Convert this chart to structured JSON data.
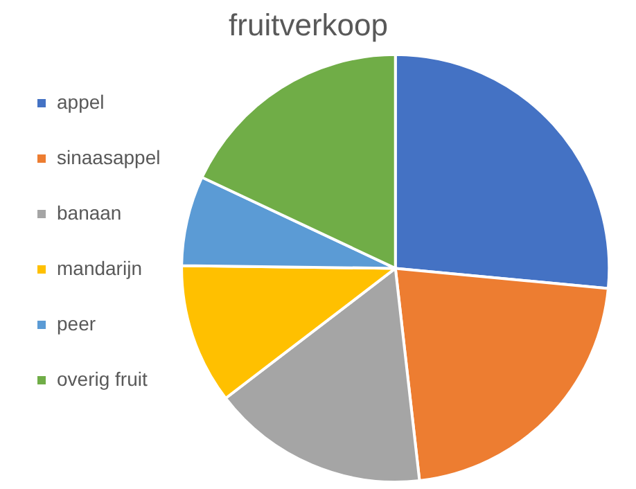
{
  "chart_data": {
    "type": "pie",
    "title": "fruitverkoop",
    "categories": [
      "appel",
      "sinaasappel",
      "banaan",
      "mandarijn",
      "peer",
      "overig fruit"
    ],
    "values": [
      26.5,
      21.7,
      16.4,
      10.6,
      6.8,
      18
    ],
    "colors": [
      "#4472c4",
      "#ed7d31",
      "#a5a5a5",
      "#ffc000",
      "#5b9bd5",
      "#70ad47"
    ],
    "legend": "left"
  }
}
